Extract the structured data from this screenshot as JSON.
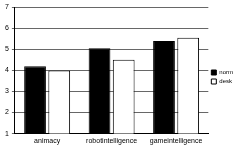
{
  "chart_data": {
    "type": "bar",
    "categories": [
      "animacy",
      "robotintelligence",
      "gameintelligence"
    ],
    "series": [
      {
        "name": "norm",
        "color": "#000000",
        "values": [
          4.2,
          5.05,
          5.4
        ]
      },
      {
        "name": "desk",
        "color": "#ffffff",
        "values": [
          4.0,
          4.5,
          5.55
        ]
      }
    ],
    "ylim": [
      1,
      7
    ],
    "yticks": [
      1,
      2,
      3,
      4,
      5,
      6,
      7
    ],
    "grid": true,
    "legend": "right"
  }
}
